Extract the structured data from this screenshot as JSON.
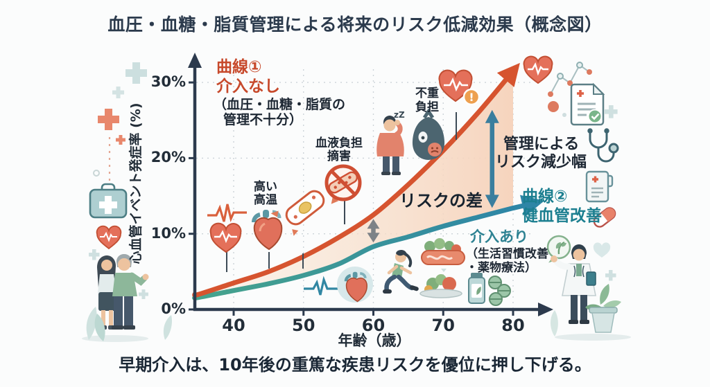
{
  "title": "血圧・血糖・脂質管理による将来のリスク低減効果（概念図）",
  "caption": "早期介入は、10年後の重篤な疾患リスクを優位に押し下げる。",
  "labels": {
    "curve1_title": "曲線①",
    "curve1_subtitle": "介入なし",
    "curve1_detail1": "（血圧・血糖・脂質の",
    "curve1_detail2": "管理不十分）",
    "curve2_title": "曲線②",
    "curve2_subtitle": "健血管改善",
    "intervention": "介入あり",
    "intervention_detail1": "（生活習慣改善",
    "intervention_detail2": "・薬物療法）",
    "risk_gap": "リスクの差",
    "reduction1": "管理による",
    "reduction2": "リスク減少幅",
    "high_bp1": "高い",
    "high_bp2": "高温",
    "vessel1": "血液負担",
    "vessel2": "摘害",
    "burden1": "不重",
    "burden2": "負担",
    "xlabel": "年齢（歳）",
    "ylabel": "心血管イベント発症率 (%)"
  },
  "glyphs": {
    "sleep": "zZ",
    "alert": "!"
  },
  "colors": {
    "axis": "#2c3a4d",
    "curve1": "#d6542f",
    "curve2_start": "#46a48c",
    "curve2_end": "#2e86a6",
    "fill_start": "#f9ead9",
    "fill_end": "#f6d2ba",
    "risk_arrow": "#7d8287",
    "reduction_arrow": "#3a7e9e",
    "red_text": "#c7492b",
    "teal_text": "#1c7f90",
    "dark_text": "#1d2733"
  },
  "chart_data": {
    "type": "line",
    "title": "血圧・血糖・脂質管理による将来のリスク低減効果（概念図）",
    "xlabel": "年齢（歳）",
    "ylabel": "心血管イベント発症率 (%)",
    "xlim": [
      34,
      83
    ],
    "ylim": [
      0,
      33
    ],
    "x_ticks": [
      40,
      50,
      60,
      70,
      80
    ],
    "y_ticks": [
      {
        "v": 0,
        "label": "0%"
      },
      {
        "v": 10,
        "label": "10%"
      },
      {
        "v": 20,
        "label": "20%"
      },
      {
        "v": 30,
        "label": "30%"
      }
    ],
    "grid": "dotted",
    "legend_position": "inline-annotations",
    "x": [
      35,
      40,
      45,
      50,
      55,
      60,
      65,
      70,
      75,
      80
    ],
    "series": [
      {
        "name": "曲線① 介入なし（血圧・血糖・脂質の管理不十分）",
        "color": "#d6542f",
        "values": [
          2.0,
          3.5,
          5.0,
          7.0,
          9.5,
          12.5,
          16.5,
          21.0,
          26.0,
          31.5
        ]
      },
      {
        "name": "曲線② 健血管改善 介入あり（生活習慣改善・薬物療法）",
        "color": "#2e86a6",
        "values": [
          1.6,
          2.5,
          3.4,
          4.5,
          6.0,
          8.3,
          9.6,
          11.0,
          12.2,
          13.4
        ]
      }
    ],
    "annotations": [
      {
        "label": "リスクの差",
        "age": 60,
        "style": "gray-double-arrow"
      },
      {
        "label": "管理によるリスク減少幅",
        "age": 77,
        "style": "teal-double-arrow"
      },
      {
        "label": "高い高温",
        "age": 45
      },
      {
        "label": "血液負担摘害",
        "age": 55
      },
      {
        "label": "不重負担",
        "age": 63
      }
    ]
  },
  "icons_left": [
    "cross-icon",
    "plus-icon",
    "first-aid-kit-icon",
    "heart-pulse-icon",
    "elderly-couple-illustration",
    "leaf-decoration"
  ],
  "icons_right": [
    "heart-pulse-icon",
    "node-graph-icon",
    "medical-report-icon",
    "stethoscope-icon",
    "medical-folder-icon",
    "pill-capsule-icon",
    "leaf-badge-icon",
    "doctor-illustration",
    "potted-plant-illustration"
  ],
  "icons_chart": [
    "ecg-line-red-icon",
    "heart-pulse-icon",
    "anatomical-heart-icon",
    "damaged-vessel-icon",
    "blocked-artery-icon",
    "tired-person-icon",
    "burden-bag-icon",
    "heart-alert-icon",
    "ecg-line-teal-icon",
    "heart-circle-icon",
    "runner-icon",
    "healthy-food-icon",
    "supplements-icon"
  ]
}
